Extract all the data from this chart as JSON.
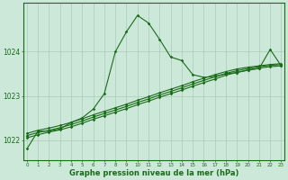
{
  "title": "Graphe pression niveau de la mer (hPa)",
  "background_color": "#cce8d8",
  "grid_color": "#aaccbb",
  "line_color": "#1a6b1a",
  "main": [
    1021.8,
    1022.2,
    1022.2,
    1022.25,
    1022.4,
    1022.5,
    1022.7,
    1023.05,
    1024.0,
    1024.45,
    1024.82,
    1024.65,
    1024.28,
    1023.88,
    1023.8,
    1023.48,
    1023.42,
    1023.44,
    1023.5,
    1023.53,
    1023.58,
    1023.62,
    1024.05,
    1023.68
  ],
  "line2": [
    1022.05,
    1022.12,
    1022.18,
    1022.23,
    1022.3,
    1022.38,
    1022.47,
    1022.55,
    1022.63,
    1022.71,
    1022.8,
    1022.88,
    1022.97,
    1023.05,
    1023.13,
    1023.22,
    1023.3,
    1023.38,
    1023.47,
    1023.53,
    1023.59,
    1023.63,
    1023.66,
    1023.68
  ],
  "line3": [
    1022.1,
    1022.17,
    1022.22,
    1022.28,
    1022.35,
    1022.43,
    1022.52,
    1022.6,
    1022.68,
    1022.76,
    1022.85,
    1022.93,
    1023.02,
    1023.1,
    1023.18,
    1023.27,
    1023.35,
    1023.43,
    1023.51,
    1023.57,
    1023.62,
    1023.66,
    1023.69,
    1023.71
  ],
  "line4": [
    1022.15,
    1022.22,
    1022.27,
    1022.33,
    1022.4,
    1022.48,
    1022.57,
    1022.65,
    1022.73,
    1022.81,
    1022.9,
    1022.98,
    1023.07,
    1023.15,
    1023.23,
    1023.32,
    1023.4,
    1023.48,
    1023.55,
    1023.61,
    1023.65,
    1023.68,
    1023.71,
    1023.73
  ],
  "xticks": [
    0,
    1,
    2,
    3,
    4,
    5,
    6,
    7,
    8,
    9,
    10,
    11,
    12,
    13,
    14,
    15,
    16,
    17,
    18,
    19,
    20,
    21,
    22,
    23
  ],
  "yticks": [
    1022,
    1023,
    1024
  ],
  "ylim": [
    1021.55,
    1025.1
  ],
  "xlim": [
    -0.3,
    23.3
  ]
}
